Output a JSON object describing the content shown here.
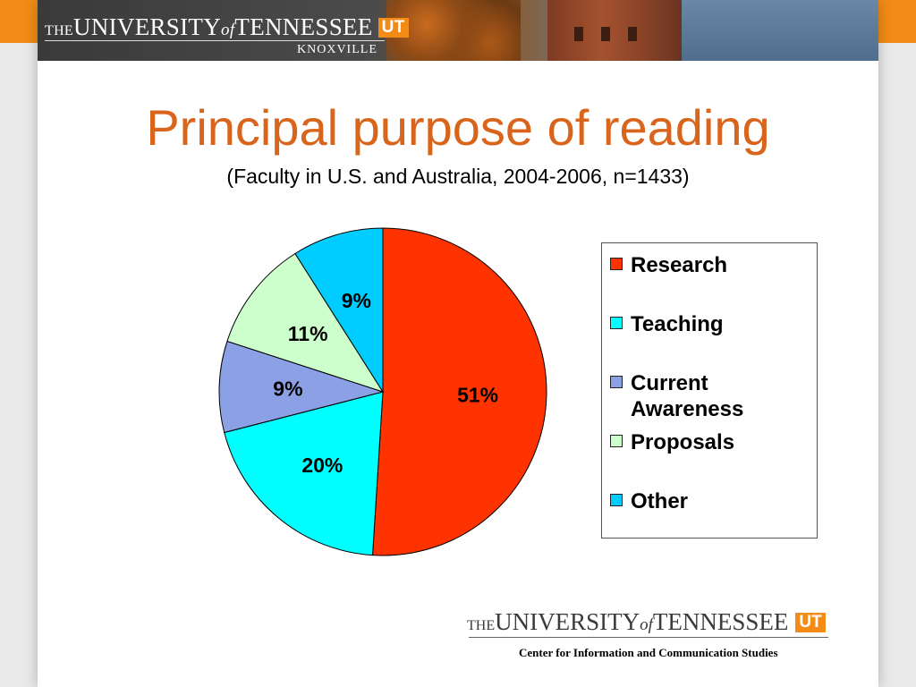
{
  "header": {
    "wordmark_the": "THE",
    "wordmark_university": "UNIVERSITY",
    "wordmark_of": "of",
    "wordmark_tennessee": "TENNESSEE",
    "badge": "UT",
    "campus": "KNOXVILLE"
  },
  "slide": {
    "title": "Principal purpose of reading",
    "subtitle": "(Faculty in U.S. and Australia, 2004-2006, n=1433)"
  },
  "chart_data": {
    "type": "pie",
    "categories": [
      "Research",
      "Teaching",
      "Current Awareness",
      "Proposals",
      "Other"
    ],
    "values": [
      51,
      20,
      9,
      11,
      9
    ],
    "data_labels": [
      "51%",
      "20%",
      "9%",
      "11%",
      "9%"
    ],
    "colors": [
      "#ff3300",
      "#00ffff",
      "#8ca0e6",
      "#ccffcc",
      "#00ccff"
    ],
    "start_angle_deg": 0,
    "direction": "clockwise",
    "legend": {
      "position": "right",
      "entries": [
        "Research",
        "Teaching",
        "Current Awareness",
        "Proposals",
        "Other"
      ]
    }
  },
  "footer": {
    "wordmark_the": "THE",
    "wordmark_university": "UNIVERSITY",
    "wordmark_of": "of",
    "wordmark_tennessee": "TENNESSEE",
    "badge": "UT",
    "center": "Center for Information and Communication Studies"
  }
}
